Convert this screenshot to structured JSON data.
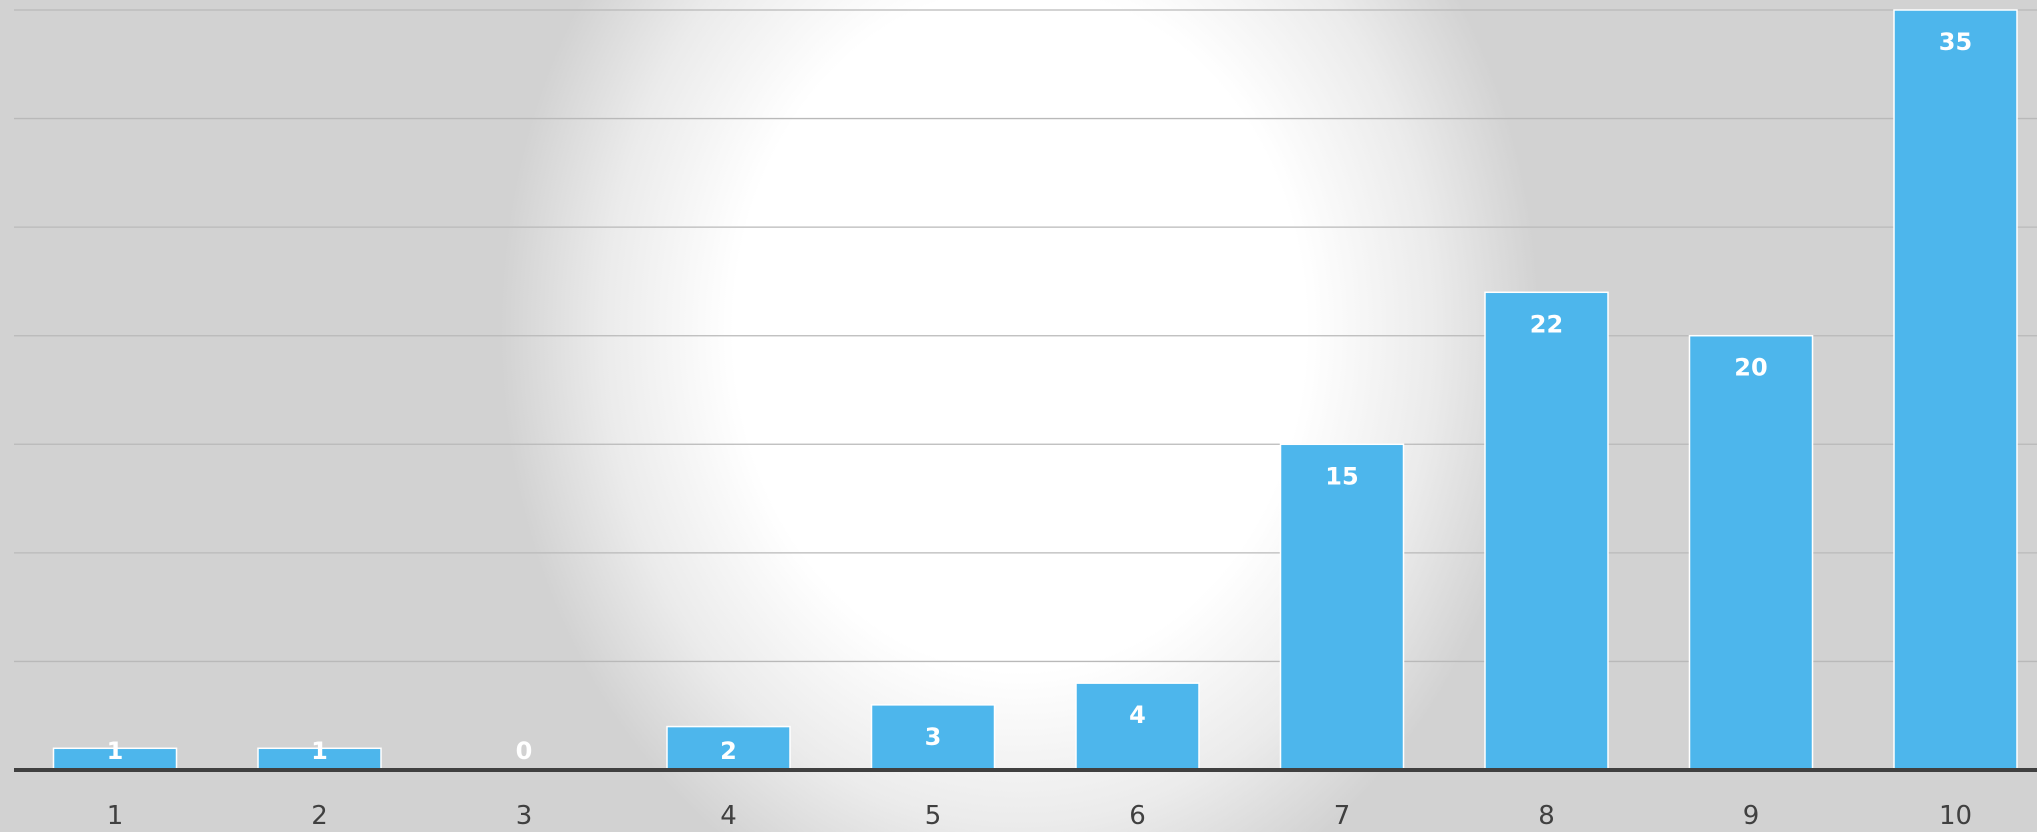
{
  "chart_data": {
    "type": "bar",
    "title": "",
    "xlabel": "",
    "ylabel": "",
    "categories": [
      "1",
      "2",
      "3",
      "4",
      "5",
      "6",
      "7",
      "8",
      "9",
      "10"
    ],
    "values": [
      1,
      1,
      0,
      2,
      3,
      4,
      15,
      22,
      20,
      35
    ],
    "data_labels": [
      "1",
      "1",
      "0",
      "2",
      "3",
      "4",
      "15",
      "22",
      "20",
      "35"
    ],
    "ylim": [
      0,
      35
    ],
    "gridline_step": 5,
    "grid": true,
    "legend": "none",
    "colors": {
      "bar": "#4DB6EC",
      "bar_label": "#FFFFFF",
      "axis": "#404040",
      "gridline": "#B9B9B9",
      "tick_label": "#404040"
    }
  }
}
